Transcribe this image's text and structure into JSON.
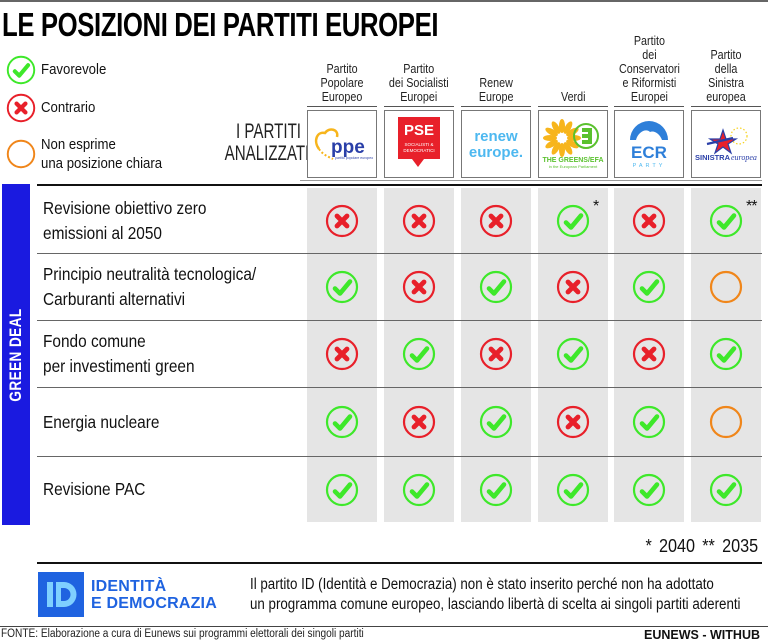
{
  "title": "LE POSIZIONI DEI PARTITI EUROPEI",
  "legend": [
    {
      "type": "favorevole",
      "icon": "check-circle-icon",
      "label": "Favorevole",
      "color": "#3ee82a"
    },
    {
      "type": "contrario",
      "icon": "x-circle-icon",
      "label": "Contrario",
      "color": "#e8202a"
    },
    {
      "type": "neutro",
      "icon": "empty-circle-icon",
      "label_line1": "Non esprime",
      "label_line2": "una posizione chiara",
      "color": "#f0861a"
    }
  ],
  "analyzed_label": {
    "line1": "I PARTITI",
    "line2": "ANALIZZATI"
  },
  "section": {
    "label": "GREEN DEAL",
    "color": "#1a1ae0"
  },
  "parties": [
    {
      "name": "Partito\nPopolare\nEuropeo",
      "logo": "ppe",
      "logo_text": "ppe",
      "logo_subtext": "partito popolare europeo"
    },
    {
      "name": "Partito\ndei Socialisti\nEuropei",
      "logo": "pse",
      "logo_text": "PSE",
      "logo_subtext": "SOCIALISTI & DEMOCRATICI"
    },
    {
      "name": "Renew\nEurope",
      "logo": "renew",
      "logo_text": "renew",
      "logo_subtext": "europe."
    },
    {
      "name": "Verdi",
      "logo": "greens",
      "logo_text": "THE GREENS/EFA",
      "logo_subtext": "in the European Parliament"
    },
    {
      "name": "Partito\ndei Conservatori\ne Riformisti\nEuropei",
      "logo": "ecr",
      "logo_text": "ECR",
      "logo_subtext": "PARTY"
    },
    {
      "name": "Partito\ndella Sinistra\neuropea",
      "logo": "sinistra",
      "logo_text": "SINISTRA",
      "logo_subtext": "europea"
    }
  ],
  "rows": [
    {
      "label_line1": "Revisione obiettivo zero",
      "label_line2": "emissioni al 2050",
      "values": [
        "contrario",
        "contrario",
        "contrario",
        "favorevole",
        "contrario",
        "favorevole"
      ],
      "notes": [
        "",
        "",
        "",
        "*",
        "",
        "**"
      ]
    },
    {
      "label_line1": "Principio neutralità tecnologica/",
      "label_line2": "Carburanti alternativi",
      "values": [
        "favorevole",
        "contrario",
        "favorevole",
        "contrario",
        "favorevole",
        "neutro"
      ],
      "notes": [
        "",
        "",
        "",
        "",
        "",
        ""
      ]
    },
    {
      "label_line1": "Fondo comune",
      "label_line2": "per investimenti green",
      "values": [
        "contrario",
        "favorevole",
        "contrario",
        "favorevole",
        "contrario",
        "favorevole"
      ],
      "notes": [
        "",
        "",
        "",
        "",
        "",
        ""
      ]
    },
    {
      "label_line1": "Energia nucleare",
      "label_line2": "",
      "values": [
        "favorevole",
        "contrario",
        "favorevole",
        "contrario",
        "favorevole",
        "neutro"
      ],
      "notes": [
        "",
        "",
        "",
        "",
        "",
        ""
      ]
    },
    {
      "label_line1": "Revisione PAC",
      "label_line2": "",
      "values": [
        "favorevole",
        "favorevole",
        "favorevole",
        "favorevole",
        "favorevole",
        "favorevole"
      ],
      "notes": [
        "",
        "",
        "",
        "",
        "",
        ""
      ]
    }
  ],
  "footnote": "* 2040   ** 2035",
  "id_party": {
    "logo_letters": "ID",
    "name_line1": "IDENTITÀ",
    "name_line2": "E DEMOCRAZIA",
    "note_line1": "Il partito ID (Identità e Democrazia) non è stato inserito perché non ha adottato",
    "note_line2": "un programma comune europeo, lasciando libertà di scelta ai singoli partiti aderenti"
  },
  "source": "FONTE: Elaborazione a cura di Eunews sui programmi elettorali dei singoli partiti",
  "credit": "EUNEWS - WITHUB",
  "colors": {
    "favorevole": "#3ee82a",
    "contrario": "#e8202a",
    "neutro": "#f0861a",
    "cell_bg": "#e5e5e5",
    "section_bar": "#1a1ae0",
    "id_blue": "#1f63e0"
  },
  "chart_data": {
    "type": "table",
    "title": "LE POSIZIONI DEI PARTITI EUROPEI",
    "section": "GREEN DEAL",
    "columns": [
      "Partito Popolare Europeo",
      "Partito dei Socialisti Europei",
      "Renew Europe",
      "Verdi",
      "Partito dei Conservatori e Riformisti Europei",
      "Partito della Sinistra europea"
    ],
    "rows": [
      {
        "topic": "Revisione obiettivo zero emissioni al 2050",
        "values": [
          "Contrario",
          "Contrario",
          "Contrario",
          "Favorevole (* 2040)",
          "Contrario",
          "Favorevole (** 2035)"
        ]
      },
      {
        "topic": "Principio neutralità tecnologica/Carburanti alternativi",
        "values": [
          "Favorevole",
          "Contrario",
          "Favorevole",
          "Contrario",
          "Favorevole",
          "Non esprime una posizione chiara"
        ]
      },
      {
        "topic": "Fondo comune per investimenti green",
        "values": [
          "Contrario",
          "Favorevole",
          "Contrario",
          "Favorevole",
          "Contrario",
          "Favorevole"
        ]
      },
      {
        "topic": "Energia nucleare",
        "values": [
          "Favorevole",
          "Contrario",
          "Favorevole",
          "Contrario",
          "Favorevole",
          "Non esprime una posizione chiara"
        ]
      },
      {
        "topic": "Revisione PAC",
        "values": [
          "Favorevole",
          "Favorevole",
          "Favorevole",
          "Favorevole",
          "Favorevole",
          "Favorevole"
        ]
      }
    ],
    "legend": [
      "Favorevole",
      "Contrario",
      "Non esprime una posizione chiara"
    ],
    "footnotes": {
      "*": "2040",
      "**": "2035"
    }
  }
}
